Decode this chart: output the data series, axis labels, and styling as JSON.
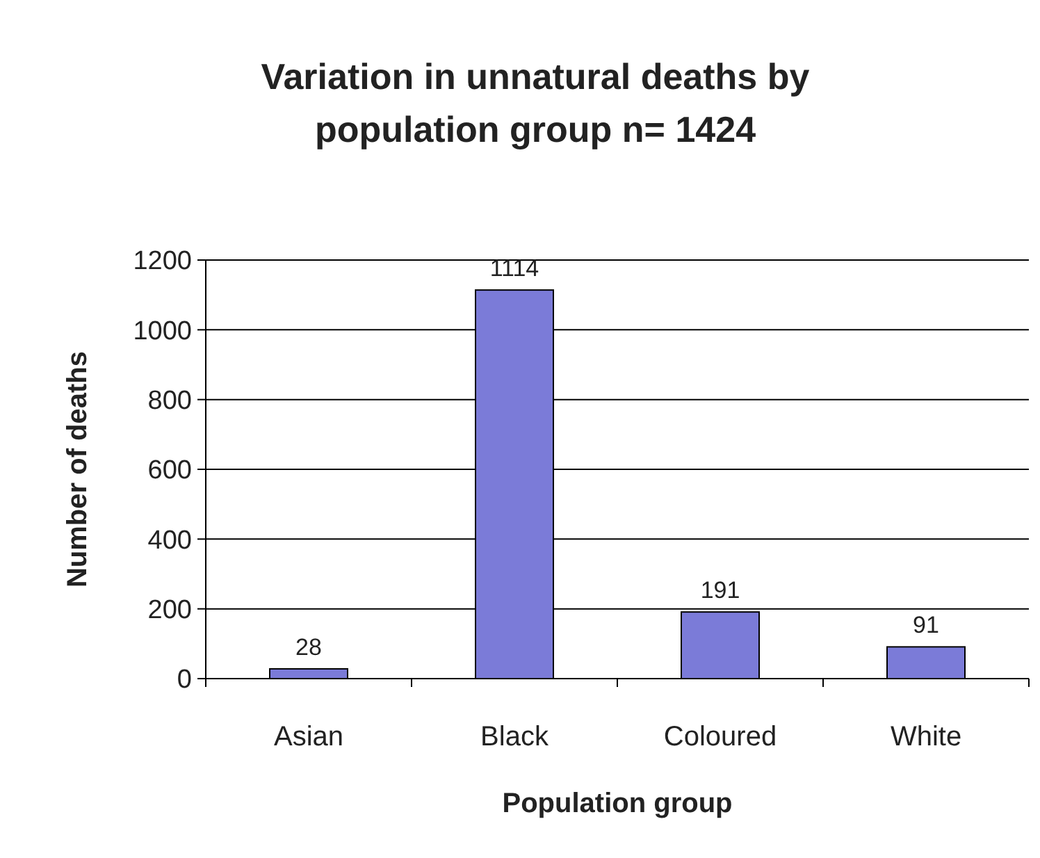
{
  "chart_data": {
    "type": "bar",
    "title": "Variation in unnatural deaths by population group n= 1424",
    "xlabel": "Population group",
    "ylabel": "Number of deaths",
    "categories": [
      "Asian",
      "Black",
      "Coloured",
      "White"
    ],
    "values": [
      28,
      1114,
      191,
      91
    ],
    "color": "#7b7bd8",
    "ylim": [
      0,
      1200
    ],
    "yticks": [
      0,
      200,
      400,
      600,
      800,
      1000,
      1200
    ],
    "grid": "y",
    "data_labels": true
  }
}
